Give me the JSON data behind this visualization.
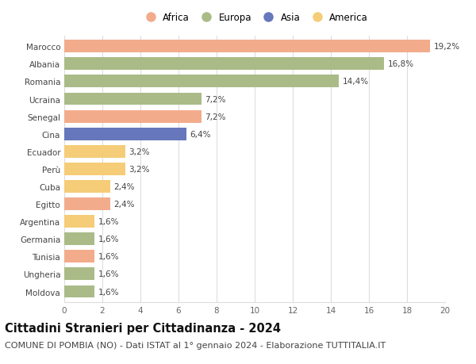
{
  "categories": [
    "Marocco",
    "Albania",
    "Romania",
    "Ucraina",
    "Senegal",
    "Cina",
    "Ecuador",
    "Perù",
    "Cuba",
    "Egitto",
    "Argentina",
    "Germania",
    "Tunisia",
    "Ungheria",
    "Moldova"
  ],
  "values": [
    19.2,
    16.8,
    14.4,
    7.2,
    7.2,
    6.4,
    3.2,
    3.2,
    2.4,
    2.4,
    1.6,
    1.6,
    1.6,
    1.6,
    1.6
  ],
  "continents": [
    "Africa",
    "Europa",
    "Europa",
    "Europa",
    "Africa",
    "Asia",
    "America",
    "America",
    "America",
    "Africa",
    "America",
    "Europa",
    "Africa",
    "Europa",
    "Europa"
  ],
  "colors": {
    "Africa": "#F2AC8C",
    "Europa": "#AABB88",
    "Asia": "#6677BB",
    "America": "#F5CC77"
  },
  "legend_order": [
    "Africa",
    "Europa",
    "Asia",
    "America"
  ],
  "xlim": [
    0,
    20
  ],
  "xticks": [
    0,
    2,
    4,
    6,
    8,
    10,
    12,
    14,
    16,
    18,
    20
  ],
  "title": "Cittadini Stranieri per Cittadinanza - 2024",
  "subtitle": "COMUNE DI POMBIA (NO) - Dati ISTAT al 1° gennaio 2024 - Elaborazione TUTTITALIA.IT",
  "title_fontsize": 10.5,
  "subtitle_fontsize": 8,
  "label_fontsize": 7.5,
  "tick_fontsize": 7.5,
  "legend_fontsize": 8.5,
  "background_color": "#ffffff",
  "grid_color": "#dddddd",
  "bar_height": 0.72
}
